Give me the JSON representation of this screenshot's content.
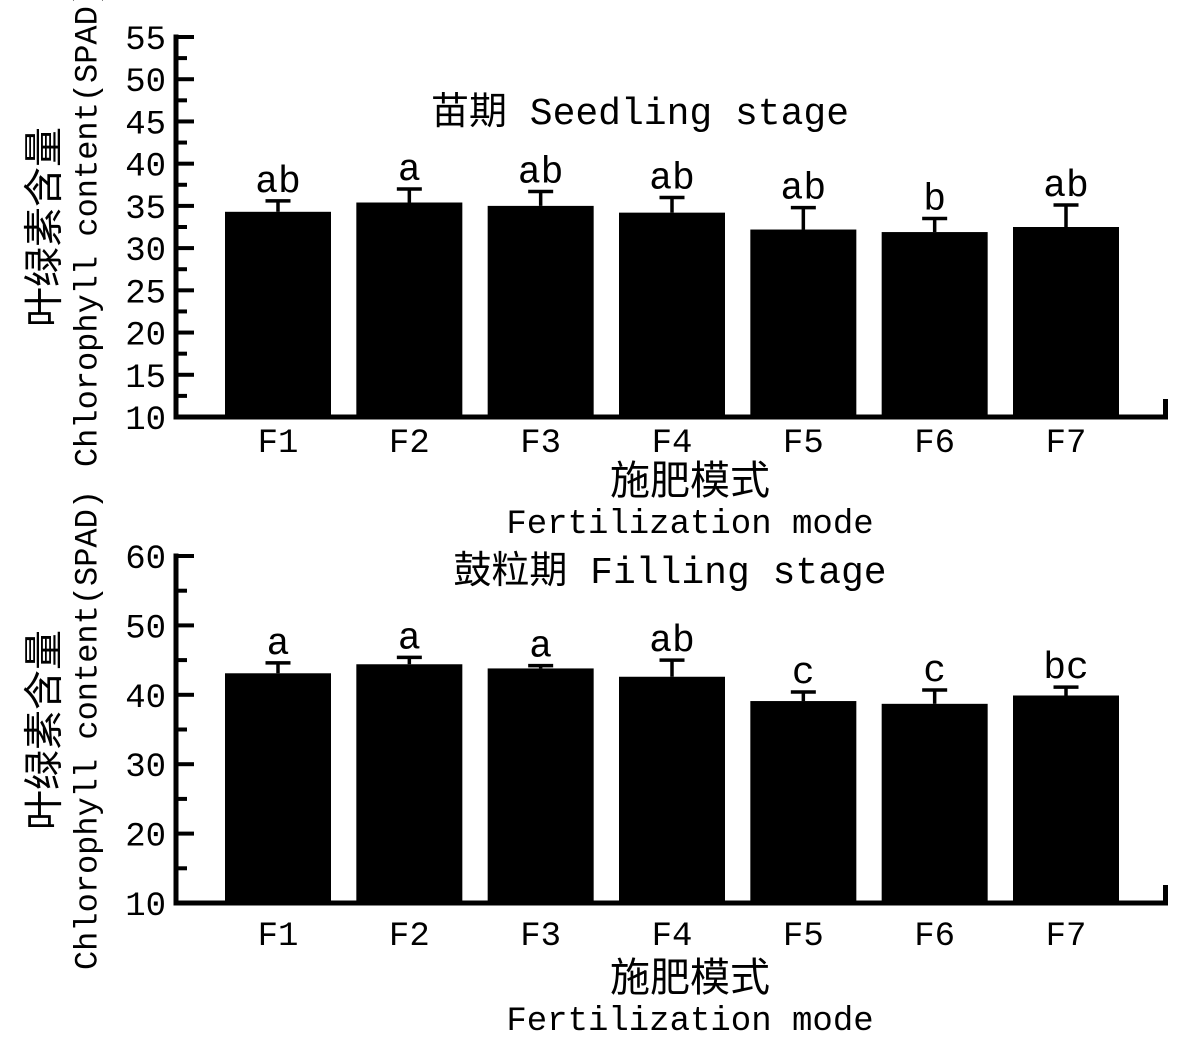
{
  "figure": {
    "background_color": "#ffffff",
    "bar_color": "#000000",
    "text_color": "#000000",
    "axis_color": "#000000"
  },
  "chart_data": [
    {
      "type": "bar",
      "title": "苗期 Seedling stage",
      "categories": [
        "F1",
        "F2",
        "F3",
        "F4",
        "F5",
        "F6",
        "F7"
      ],
      "values": [
        34.3,
        35.4,
        35.0,
        34.2,
        32.2,
        31.9,
        32.5
      ],
      "errors": [
        1.3,
        1.6,
        1.7,
        1.8,
        2.6,
        1.6,
        2.6
      ],
      "sig_letters": [
        "ab",
        "a",
        "ab",
        "ab",
        "ab",
        "b",
        "ab"
      ],
      "ylabel_cn": "叶绿素含量",
      "ylabel_en": "Chlorophyll content(SPAD)",
      "xlabel_cn": "施肥模式",
      "xlabel_en": "Fertilization mode",
      "ylim": [
        10,
        55
      ],
      "ytick_step": 5,
      "yminor_step": 2.5,
      "ytick_labels": [
        "10",
        "15",
        "20",
        "25",
        "30",
        "35",
        "40",
        "45",
        "50",
        "55"
      ],
      "grid": "off",
      "legend": "none",
      "error_bars": "upper-cap"
    },
    {
      "type": "bar",
      "title": "鼓粒期 Filling stage",
      "categories": [
        "F1",
        "F2",
        "F3",
        "F4",
        "F5",
        "F6",
        "F7"
      ],
      "values": [
        43.1,
        44.4,
        43.8,
        42.6,
        39.1,
        38.7,
        39.9
      ],
      "errors": [
        1.5,
        1.0,
        0.4,
        2.4,
        1.3,
        2.0,
        1.2
      ],
      "sig_letters": [
        "a",
        "a",
        "a",
        "ab",
        "c",
        "c",
        "bc"
      ],
      "ylabel_cn": "叶绿素含量",
      "ylabel_en": "Chlorophyll content(SPAD)",
      "xlabel_cn": "施肥模式",
      "xlabel_en": "Fertilization mode",
      "ylim": [
        10,
        60
      ],
      "ytick_step": 10,
      "yminor_step": 5,
      "ytick_labels": [
        "10",
        "20",
        "30",
        "40",
        "50",
        "60"
      ],
      "grid": "off",
      "legend": "none",
      "error_bars": "upper-cap"
    }
  ]
}
